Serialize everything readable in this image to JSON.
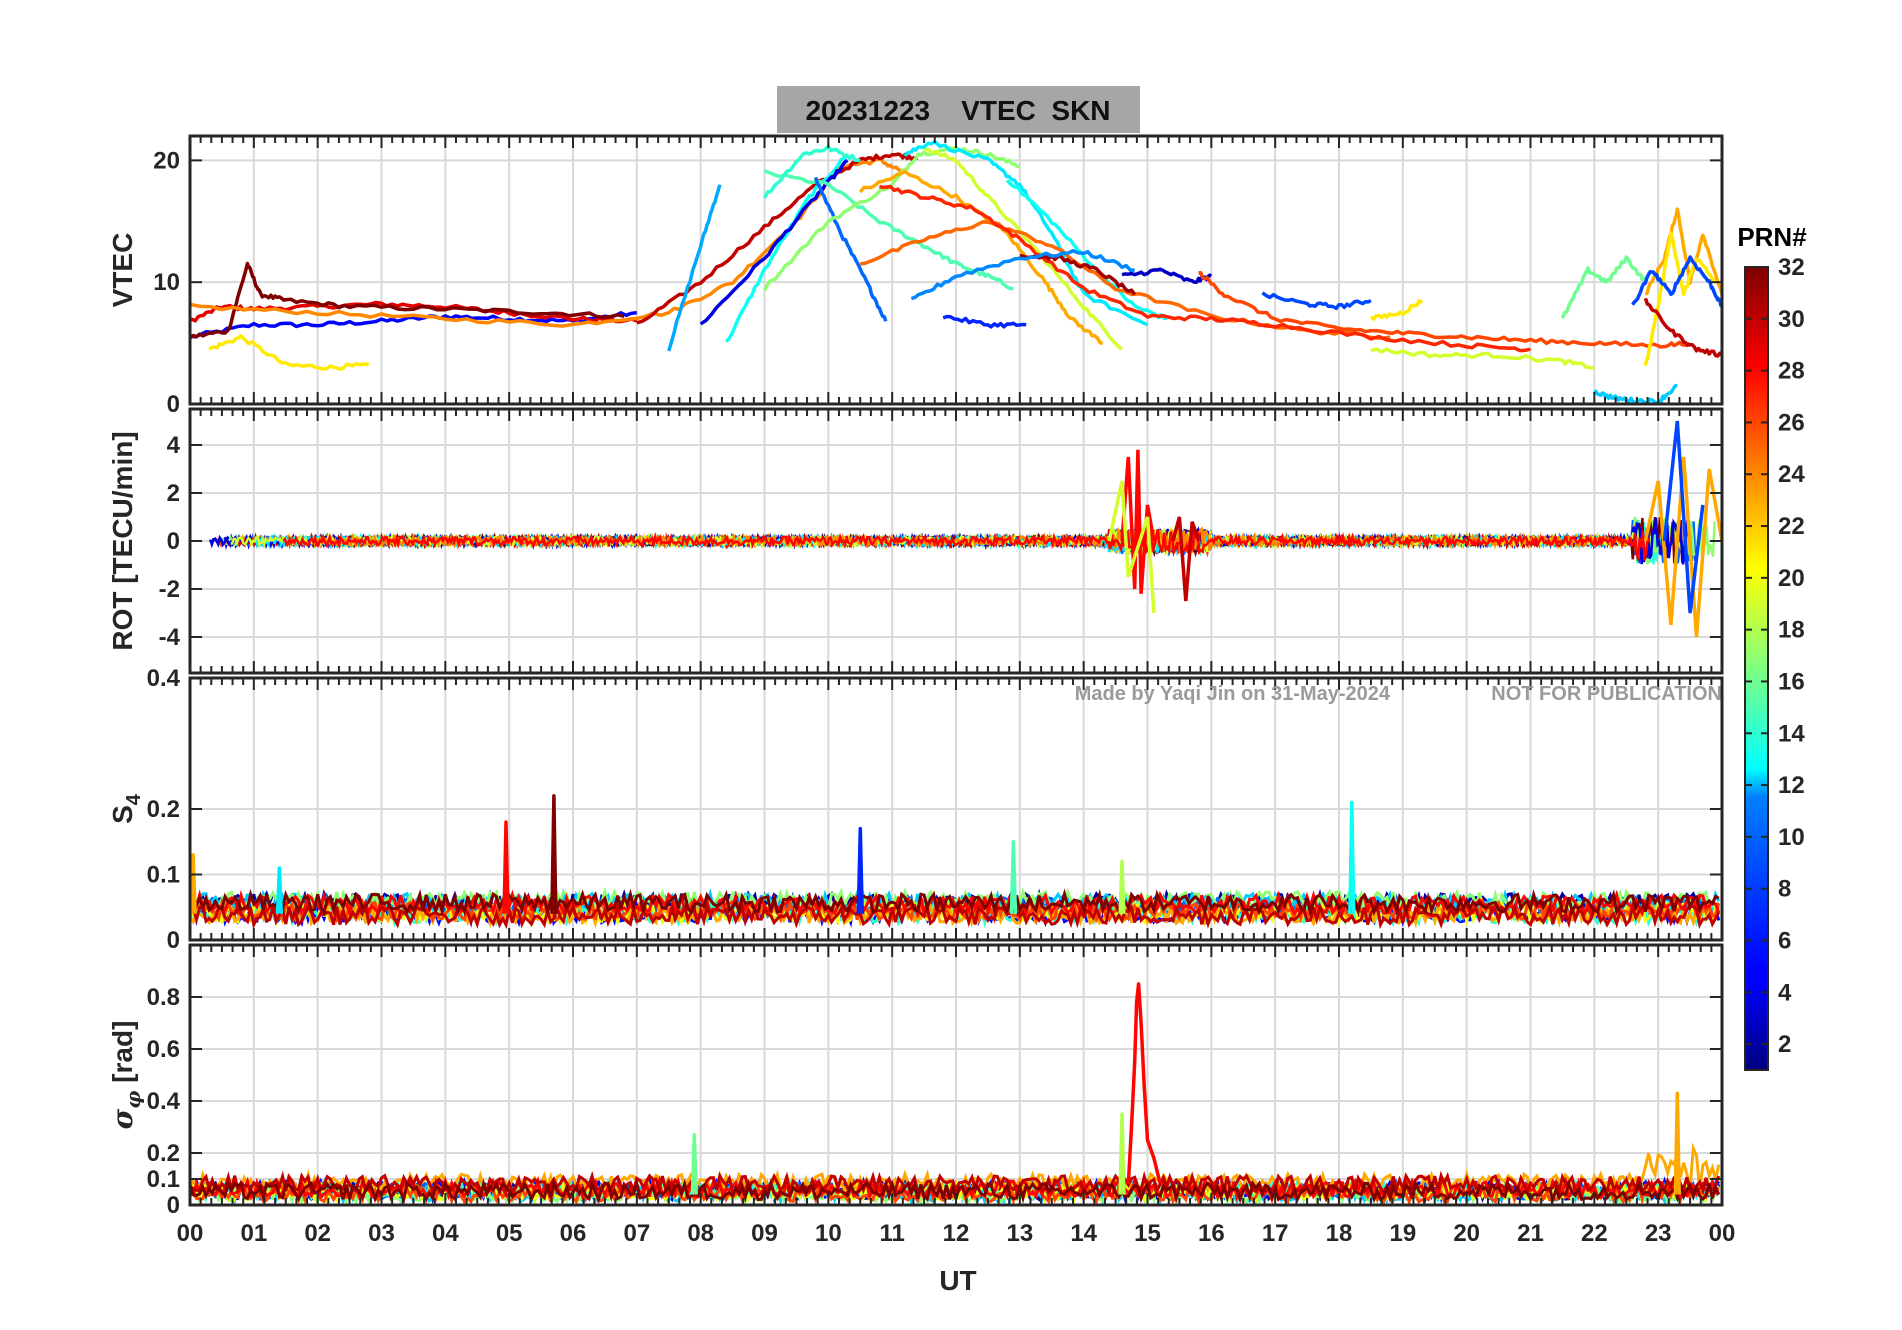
{
  "title": "20231223    VTEC  SKN",
  "notes": {
    "made_by": "Made by Yaqi Jin on 31-May-2024",
    "not_for_publication": "NOT FOR PUBLICATION"
  },
  "colorbar": {
    "title": "PRN#",
    "range": [
      1,
      32
    ],
    "ticks": [
      "2",
      "4",
      "6",
      "8",
      "10",
      "12",
      "14",
      "16",
      "18",
      "20",
      "22",
      "24",
      "26",
      "28",
      "30",
      "32"
    ],
    "colormap": "jet"
  },
  "chart_data": [
    {
      "type": "line",
      "panel": "vtec",
      "ylabel": "VTEC",
      "ylim": [
        0,
        22
      ],
      "yticks": [
        "0",
        "10",
        "20"
      ],
      "grid": true,
      "series": [
        {
          "prn": 5,
          "x": [
            0.0,
            1.0,
            2.0,
            3.0,
            4.0,
            5.0,
            6.0,
            7.0
          ],
          "y": [
            5.5,
            6.5,
            6.5,
            6.8,
            7.2,
            7.0,
            6.8,
            7.5
          ]
        },
        {
          "prn": 29,
          "x": [
            0.0,
            0.5,
            1.0,
            2.0,
            3.0,
            4.0,
            5.0,
            6.0,
            7.0
          ],
          "y": [
            6.8,
            8.0,
            7.8,
            8.0,
            8.2,
            8.0,
            7.5,
            7.0,
            6.8
          ]
        },
        {
          "prn": 32,
          "x": [
            0.0,
            0.6,
            0.9,
            1.1,
            1.5,
            2.5,
            4.0,
            5.5,
            6.8
          ],
          "y": [
            5.5,
            6.0,
            11.5,
            9.0,
            8.5,
            8.0,
            7.8,
            7.5,
            7.2
          ]
        },
        {
          "prn": 21,
          "x": [
            0.3,
            0.8,
            1.5,
            2.2,
            2.8
          ],
          "y": [
            4.5,
            5.5,
            3.2,
            3.0,
            3.2
          ]
        },
        {
          "prn": 24,
          "x": [
            0.0,
            2.0,
            4.0,
            6.0,
            7.5,
            8.5,
            9.5,
            10.2,
            10.8,
            11.2
          ],
          "y": [
            8.0,
            7.5,
            7.0,
            6.5,
            7.5,
            10.0,
            15.0,
            19.5,
            20.0,
            19.0
          ]
        },
        {
          "prn": 30,
          "x": [
            7.0,
            8.0,
            9.0,
            9.8,
            10.5,
            11.0,
            11.4
          ],
          "y": [
            6.5,
            10.0,
            14.5,
            18.0,
            20.0,
            20.5,
            20.2
          ]
        },
        {
          "prn": 10,
          "x": [
            7.5,
            8.0,
            8.3
          ],
          "y": [
            4.5,
            13.0,
            18.0
          ]
        },
        {
          "prn": 13,
          "x": [
            8.4,
            9.0,
            9.7,
            10.3
          ],
          "y": [
            5.0,
            11.0,
            17.0,
            20.5
          ]
        },
        {
          "prn": 4,
          "x": [
            8.0,
            9.0,
            9.8,
            10.3
          ],
          "y": [
            6.5,
            12.0,
            17.0,
            20.0
          ]
        },
        {
          "prn": 15,
          "x": [
            9.0,
            10.0,
            10.8,
            11.5,
            12.0,
            12.5,
            12.9
          ],
          "y": [
            19.0,
            18.0,
            15.0,
            13.0,
            11.5,
            10.5,
            9.5
          ]
        },
        {
          "prn": 8,
          "x": [
            9.8,
            10.2,
            10.6,
            10.9
          ],
          "y": [
            18.5,
            14.0,
            10.0,
            6.8
          ]
        },
        {
          "prn": 14,
          "x": [
            9.0,
            9.6,
            10.0,
            10.5
          ],
          "y": [
            17.0,
            20.5,
            21.0,
            20.0
          ]
        },
        {
          "prn": 17,
          "x": [
            9.0,
            10.0,
            11.0,
            11.4,
            12.0,
            12.5,
            13.0
          ],
          "y": [
            9.5,
            15.0,
            18.0,
            20.5,
            21.0,
            20.5,
            19.5
          ]
        },
        {
          "prn": 19,
          "x": [
            11.5,
            12.0,
            12.5,
            13.2,
            14.0,
            14.6
          ],
          "y": [
            21.0,
            20.0,
            17.0,
            13.0,
            8.0,
            4.5
          ]
        },
        {
          "prn": 12,
          "x": [
            11.2,
            11.6,
            12.5,
            13.0,
            13.5,
            14.0,
            15.0
          ],
          "y": [
            20.5,
            21.5,
            20.0,
            18.0,
            14.0,
            9.0,
            6.5
          ]
        },
        {
          "prn": 13,
          "x": [
            12.8,
            13.5,
            14.2,
            14.8,
            15.3
          ],
          "y": [
            18.5,
            15.0,
            11.0,
            8.0,
            7.0
          ]
        },
        {
          "prn": 23,
          "x": [
            10.5,
            11.2,
            12.0,
            12.8,
            13.4,
            13.8,
            14.3
          ],
          "y": [
            17.5,
            19.0,
            17.0,
            14.0,
            10.0,
            7.0,
            5.0
          ]
        },
        {
          "prn": 25,
          "x": [
            10.5,
            11.5,
            12.5,
            13.5,
            14.5,
            16.0,
            17.5,
            18.8
          ],
          "y": [
            11.5,
            13.5,
            15.0,
            13.0,
            9.5,
            7.2,
            6.0,
            5.5
          ]
        },
        {
          "prn": 27,
          "x": [
            10.8,
            11.5,
            12.3,
            13.0,
            14.0,
            15.0,
            16.0,
            17.0,
            18.5,
            20.0,
            21.0
          ],
          "y": [
            18.0,
            17.0,
            16.0,
            13.5,
            9.5,
            7.2,
            7.0,
            6.5,
            5.5,
            4.8,
            4.5
          ]
        },
        {
          "prn": 31,
          "x": [
            13.0,
            13.6,
            14.2,
            14.8
          ],
          "y": [
            12.2,
            12.0,
            11.0,
            9.0
          ]
        },
        {
          "prn": 9,
          "x": [
            11.3,
            12.0,
            13.0,
            14.0,
            14.8
          ],
          "y": [
            8.5,
            10.5,
            12.0,
            12.5,
            11.0
          ]
        },
        {
          "prn": 6,
          "x": [
            11.8,
            12.5,
            13.1
          ],
          "y": [
            7.2,
            6.5,
            6.5
          ]
        },
        {
          "prn": 3,
          "x": [
            14.6,
            15.2,
            15.7,
            16.0
          ],
          "y": [
            10.5,
            11.0,
            10.0,
            10.5
          ]
        },
        {
          "prn": 26,
          "x": [
            15.8,
            16.2,
            17.0,
            18.0,
            19.0,
            20.0,
            21.0,
            22.0,
            23.0,
            23.5
          ],
          "y": [
            10.8,
            9.0,
            7.0,
            6.2,
            5.8,
            5.5,
            5.2,
            5.0,
            4.8,
            5.0
          ]
        },
        {
          "prn": 21,
          "x": [
            18.5,
            19.0,
            19.3
          ],
          "y": [
            7.0,
            7.5,
            8.5
          ]
        },
        {
          "prn": 19,
          "x": [
            18.5,
            19.5,
            20.5,
            21.5,
            22.0
          ],
          "y": [
            4.5,
            4.0,
            4.0,
            3.5,
            3.0
          ]
        },
        {
          "prn": 7,
          "x": [
            16.8,
            17.5,
            18.0,
            18.5
          ],
          "y": [
            9.0,
            8.2,
            8.0,
            8.5
          ]
        },
        {
          "prn": 11,
          "x": [
            22.0,
            22.3,
            22.6,
            23.0,
            23.3
          ],
          "y": [
            1.0,
            0.5,
            0.3,
            0.2,
            1.5
          ]
        },
        {
          "prn": 16,
          "x": [
            21.5,
            21.9,
            22.2,
            22.5,
            22.8
          ],
          "y": [
            7.0,
            11.0,
            10.0,
            12.0,
            10.0
          ]
        },
        {
          "prn": 23,
          "x": [
            22.8,
            23.1,
            23.3,
            23.5,
            23.7,
            24.0
          ],
          "y": [
            9.0,
            12.0,
            16.0,
            10.0,
            14.0,
            9.0
          ]
        },
        {
          "prn": 21,
          "x": [
            22.8,
            23.0,
            23.2,
            23.4,
            23.6,
            23.9
          ],
          "y": [
            3.0,
            8.0,
            14.0,
            9.0,
            12.0,
            10.0
          ]
        },
        {
          "prn": 7,
          "x": [
            22.6,
            22.9,
            23.2,
            23.5,
            23.8,
            24.0
          ],
          "y": [
            8.0,
            11.0,
            9.0,
            12.0,
            10.0,
            8.0
          ]
        },
        {
          "prn": 30,
          "x": [
            22.8,
            23.2,
            23.6,
            24.0
          ],
          "y": [
            8.5,
            6.0,
            4.5,
            4.0
          ]
        }
      ]
    },
    {
      "type": "line",
      "panel": "rot",
      "ylabel": "ROT [TECU/min]",
      "ylim": [
        -5.5,
        5.5
      ],
      "yticks": [
        "-4",
        "-2",
        "0",
        "2",
        "4"
      ],
      "grid": true,
      "description_of_activity": "Fluctuations mostly within +/-0.5; bursts near 14.5-16 UT (up to 4 / -2.5) and 22.5-24 UT (up to 5 / -4)",
      "series": [
        {
          "prn": 28,
          "x": [
            14.6,
            14.7,
            14.8,
            14.85,
            14.9,
            15.0,
            15.1
          ],
          "y": [
            0.0,
            3.5,
            -2.0,
            3.8,
            -2.2,
            1.5,
            0.0
          ]
        },
        {
          "prn": 30,
          "x": [
            15.4,
            15.5,
            15.6,
            15.7,
            15.8
          ],
          "y": [
            0.0,
            1.0,
            -2.5,
            0.8,
            0.0
          ]
        },
        {
          "prn": 19,
          "x": [
            14.4,
            14.6,
            14.7,
            15.0,
            15.1
          ],
          "y": [
            0.0,
            2.5,
            -1.5,
            1.0,
            -3.0
          ]
        },
        {
          "prn": 23,
          "x": [
            22.8,
            23.0,
            23.2,
            23.4,
            23.6,
            23.8,
            24.0
          ],
          "y": [
            0.0,
            2.5,
            -3.5,
            3.5,
            -4.0,
            3.0,
            0.0
          ]
        },
        {
          "prn": 7,
          "x": [
            23.1,
            23.3,
            23.5,
            23.7
          ],
          "y": [
            0.0,
            5.0,
            -3.0,
            1.5
          ]
        }
      ]
    },
    {
      "type": "line",
      "panel": "s4",
      "ylabel": "S4",
      "ylim": [
        0,
        0.4
      ],
      "yticks": [
        "0",
        "0.1",
        "0.2",
        "0.4"
      ],
      "grid": true,
      "baseline_range": [
        0.03,
        0.07
      ],
      "spikes": [
        {
          "prn": 28,
          "x": 4.95,
          "y": 0.18
        },
        {
          "prn": 32,
          "x": 5.7,
          "y": 0.22
        },
        {
          "prn": 6,
          "x": 10.5,
          "y": 0.17
        },
        {
          "prn": 15,
          "x": 12.9,
          "y": 0.15
        },
        {
          "prn": 18,
          "x": 14.6,
          "y": 0.12
        },
        {
          "prn": 13,
          "x": 18.2,
          "y": 0.21
        },
        {
          "prn": 23,
          "x": 0.05,
          "y": 0.13
        },
        {
          "prn": 12,
          "x": 1.4,
          "y": 0.11
        }
      ]
    },
    {
      "type": "line",
      "panel": "sigma_phi",
      "ylabel": "σ_φ [rad]",
      "ylim": [
        0,
        1.0
      ],
      "yticks": [
        "0",
        "0.1",
        "0.2",
        "0.4",
        "0.6",
        "0.8"
      ],
      "grid": true,
      "baseline_range": [
        0.03,
        0.12
      ],
      "spikes": [
        {
          "prn": 28,
          "x": 14.85,
          "y": 0.85
        },
        {
          "prn": 18,
          "x": 14.6,
          "y": 0.35
        },
        {
          "prn": 16,
          "x": 7.9,
          "y": 0.27
        },
        {
          "prn": 23,
          "x": 23.3,
          "y": 0.43
        }
      ]
    }
  ],
  "xaxis": {
    "label": "UT",
    "range": [
      0,
      24
    ],
    "ticks": [
      "00",
      "01",
      "02",
      "03",
      "04",
      "05",
      "06",
      "07",
      "08",
      "09",
      "10",
      "11",
      "12",
      "13",
      "14",
      "15",
      "16",
      "17",
      "18",
      "19",
      "20",
      "21",
      "22",
      "23",
      "00"
    ]
  }
}
